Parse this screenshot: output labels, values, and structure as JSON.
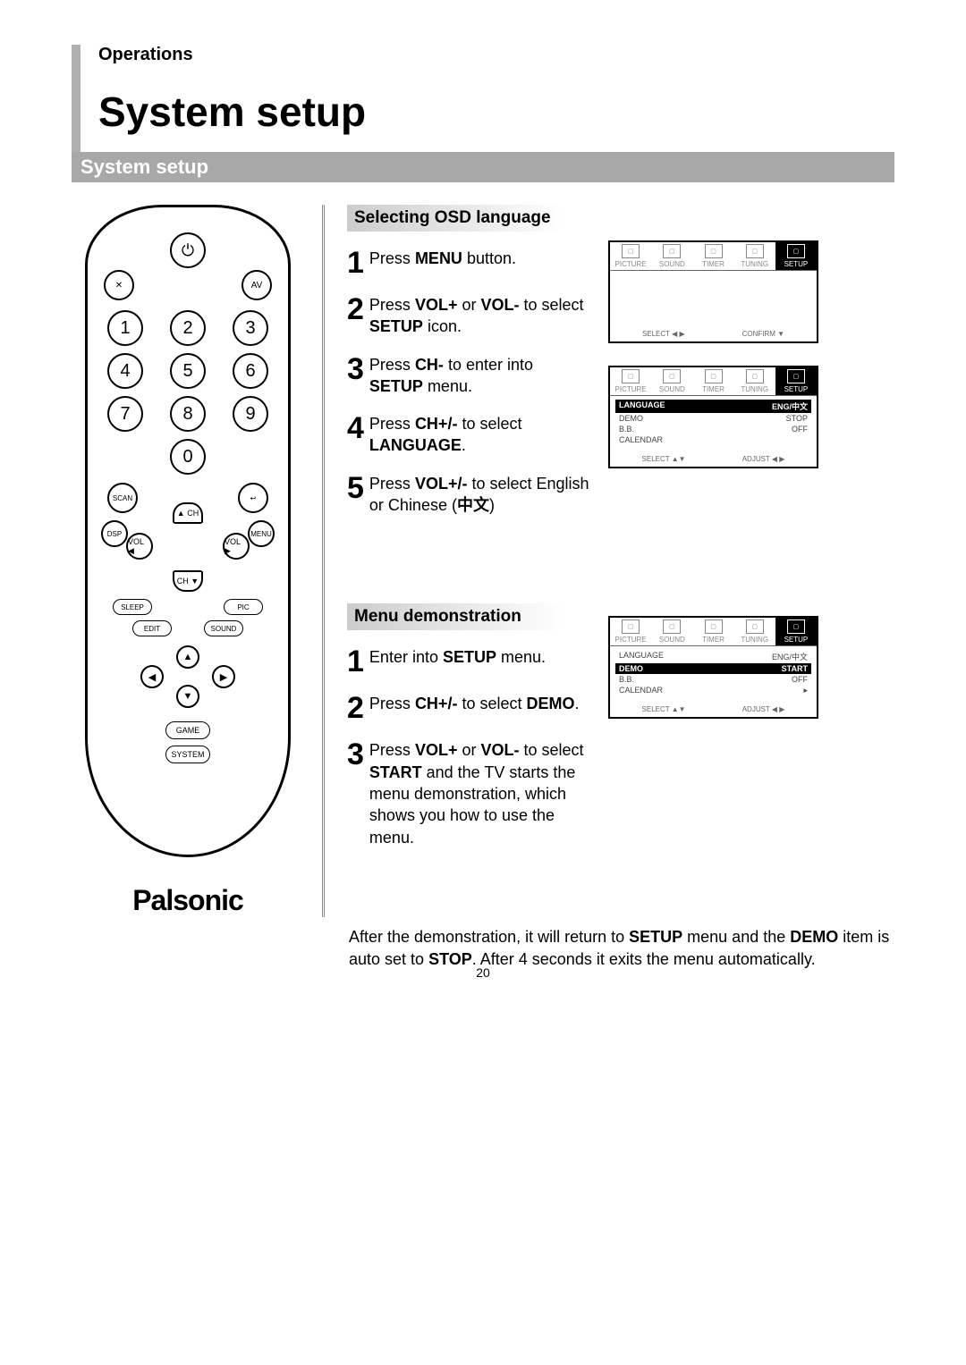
{
  "header": {
    "breadcrumb": "Operations",
    "title": "System setup",
    "section_bar": "System setup"
  },
  "remote": {
    "mute_label": "✕",
    "av_label": "AV",
    "digits": [
      "1",
      "2",
      "3",
      "4",
      "5",
      "6",
      "7",
      "8",
      "9",
      "0"
    ],
    "scan": "SCAN",
    "back": "↩",
    "dsp": "DSP",
    "menu": "MENU",
    "ch_up": "▲ CH",
    "ch_dn": "CH ▼",
    "vol_l": "VOL ◀",
    "vol_r": "VOL ▶",
    "sleep": "SLEEP",
    "pic": "PIC",
    "edit": "EDIT",
    "sound": "SOUND",
    "d_up": "▲",
    "d_dn": "▼",
    "d_lf": "◀",
    "d_rt": "▶",
    "game": "GAME",
    "system": "SYSTEM",
    "brand": "Palsonic"
  },
  "section1": {
    "heading": "Selecting OSD language",
    "steps": [
      {
        "n": "1",
        "html": "Press <b>MENU</b> button."
      },
      {
        "n": "2",
        "html": "Press <b>VOL+</b> or <b>VOL-</b> to select <b>SETUP</b> icon."
      },
      {
        "n": "3",
        "html": "Press <b>CH-</b> to enter into <b>SETUP</b> menu."
      },
      {
        "n": "4",
        "html": "Press <b>CH+/-</b> to select <b>LANGUAGE</b>."
      },
      {
        "n": "5",
        "html": "Press <b>VOL+/-</b> to select English or Chinese (<b>中文</b>)"
      }
    ]
  },
  "section2": {
    "heading": "Menu demonstration",
    "steps": [
      {
        "n": "1",
        "html": "Enter into <b>SETUP</b> menu."
      },
      {
        "n": "2",
        "html": "Press <b>CH+/-</b> to select <b>DEMO</b>."
      },
      {
        "n": "3",
        "html": "Press <b>VOL+</b> or <b>VOL-</b> to select <b>START</b> and the TV starts the menu demonstration, which shows you how to use the menu."
      }
    ],
    "para_html": "After the demonstration, it will return to <b>SETUP</b> menu and the <b>DEMO</b> item is auto set to <b>STOP</b>. After 4 seconds it exits the menu automatically."
  },
  "osd": {
    "tabs": [
      "PICTURE",
      "SOUND",
      "TIMER",
      "TUNING",
      "SETUP"
    ],
    "screen1_footer": {
      "left": "SELECT ◀ ▶",
      "right": "CONFIRM ▼"
    },
    "screen2_rows": [
      {
        "label": "LANGUAGE",
        "value": "ENG/中文",
        "hl": true
      },
      {
        "label": "DEMO",
        "value": "STOP"
      },
      {
        "label": "B.B.",
        "value": "OFF"
      },
      {
        "label": "CALENDAR",
        "value": ""
      }
    ],
    "screen2_footer": {
      "left": "SELECT ▲▼",
      "right": "ADJUST ◀ ▶"
    },
    "screen3_rows": [
      {
        "label": "LANGUAGE",
        "value": "ENG/中文"
      },
      {
        "label": "DEMO",
        "value": "START",
        "hl": true
      },
      {
        "label": "B.B.",
        "value": "OFF"
      },
      {
        "label": "CALENDAR",
        "value": "▸"
      }
    ],
    "screen3_footer": {
      "left": "SELECT ▲▼",
      "right": "ADJUST ◀ ▶"
    }
  },
  "page_number": "20",
  "colors": {
    "section_bar_bg": "#a8a8a8",
    "accent_bar": "#b0b0b0"
  }
}
